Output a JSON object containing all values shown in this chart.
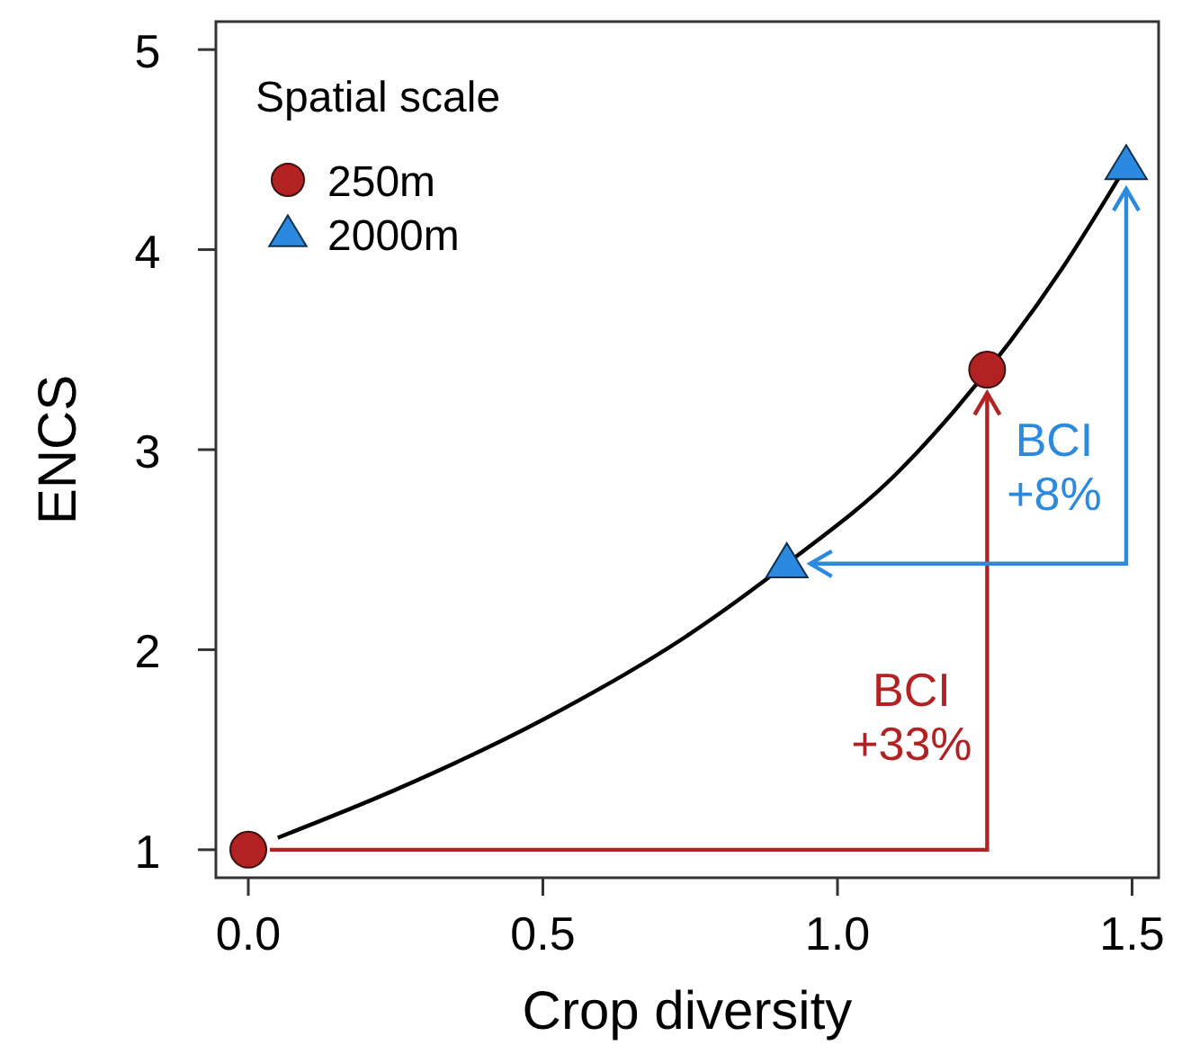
{
  "chart_data": {
    "type": "scatter",
    "xlabel": "Crop diversity",
    "ylabel": "ENCS",
    "legend_title": "Spatial scale",
    "legend": "top left",
    "grid": false,
    "xlim": [
      -0.055,
      1.545
    ],
    "xticks": [
      {
        "value": 0,
        "label": "0.0"
      },
      0.5,
      {
        "value": 1,
        "label": "1.0"
      },
      1.5
    ],
    "ylim": [
      0.86,
      5.14
    ],
    "yticks": [
      1,
      2,
      3,
      4,
      5
    ],
    "series": [
      {
        "type": "line",
        "color": "#000000",
        "marker": "none",
        "x": [
          0.05,
          0.25,
          0.5,
          0.75,
          0.914,
          1.1,
          1.2,
          1.38,
          1.49
        ],
        "values": [
          1.06,
          1.3,
          1.65,
          2.08,
          2.43,
          2.88,
          3.2,
          3.9,
          4.42
        ]
      },
      {
        "name": "250m",
        "color": "#b22222",
        "marker": "circle",
        "x": [
          0,
          1.254
        ],
        "values": [
          1,
          3.4
        ]
      },
      {
        "name": "2000m",
        "color": "#2b8ae0",
        "marker": "triangle",
        "x": [
          0.914,
          1.49
        ],
        "values": [
          2.43,
          4.42
        ]
      }
    ],
    "annotations": [
      "BCI +33%",
      "BCI +8%"
    ]
  }
}
